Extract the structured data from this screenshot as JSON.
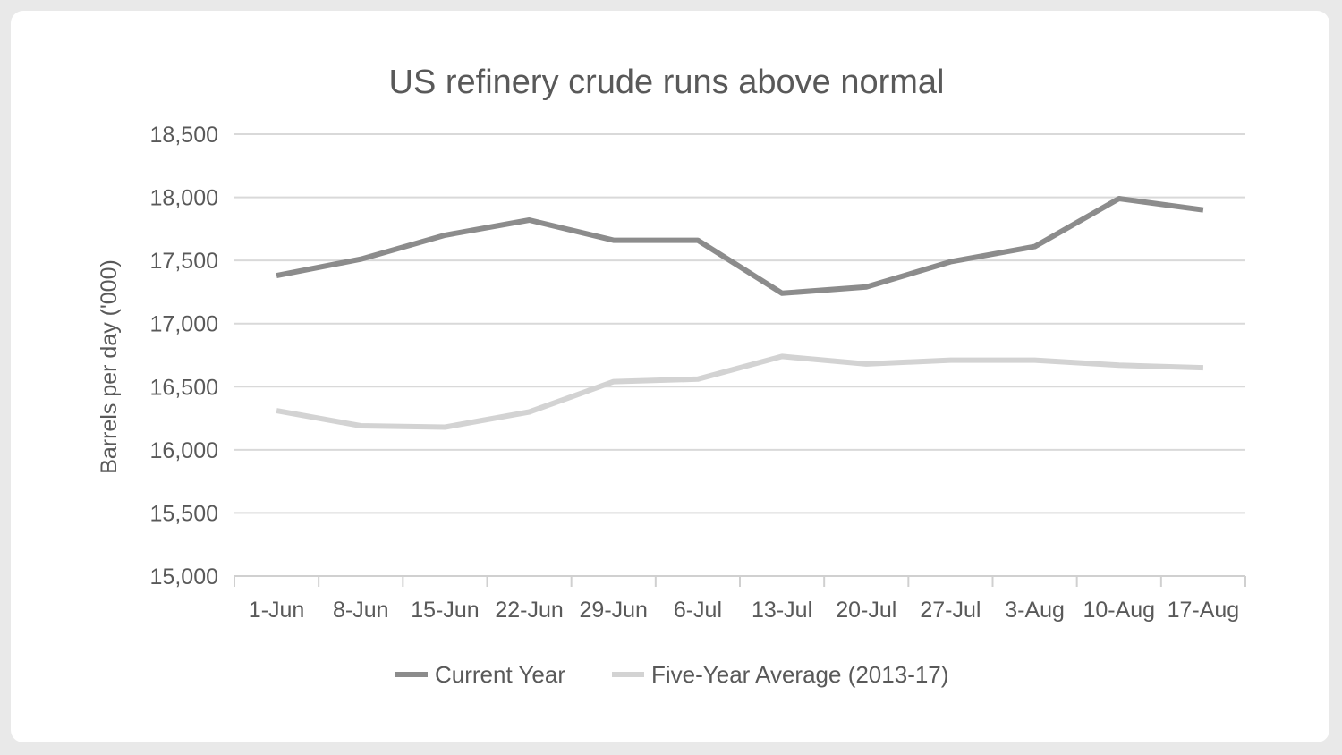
{
  "chart_data": {
    "type": "line",
    "title": "US refinery crude runs above normal",
    "xlabel": "",
    "ylabel": "Barrels per day ('000)",
    "categories": [
      "1-Jun",
      "8-Jun",
      "15-Jun",
      "22-Jun",
      "29-Jun",
      "6-Jul",
      "13-Jul",
      "20-Jul",
      "27-Jul",
      "3-Aug",
      "10-Aug",
      "17-Aug"
    ],
    "ylim": [
      15000,
      18500
    ],
    "yticks": [
      15000,
      15500,
      16000,
      16500,
      17000,
      17500,
      18000,
      18500
    ],
    "ytick_labels": [
      "15,000",
      "15,500",
      "16,000",
      "16,500",
      "17,000",
      "17,500",
      "18,000",
      "18,500"
    ],
    "grid": true,
    "legend_position": "bottom",
    "series": [
      {
        "name": "Current Year",
        "color": "#8c8c8c",
        "values": [
          17380,
          17510,
          17700,
          17820,
          17660,
          17660,
          17240,
          17290,
          17490,
          17610,
          17990,
          17900
        ]
      },
      {
        "name": "Five-Year Average (2013-17)",
        "color": "#d3d3d3",
        "values": [
          16310,
          16190,
          16180,
          16300,
          16540,
          16560,
          16740,
          16680,
          16710,
          16710,
          16670,
          16650
        ]
      }
    ]
  }
}
